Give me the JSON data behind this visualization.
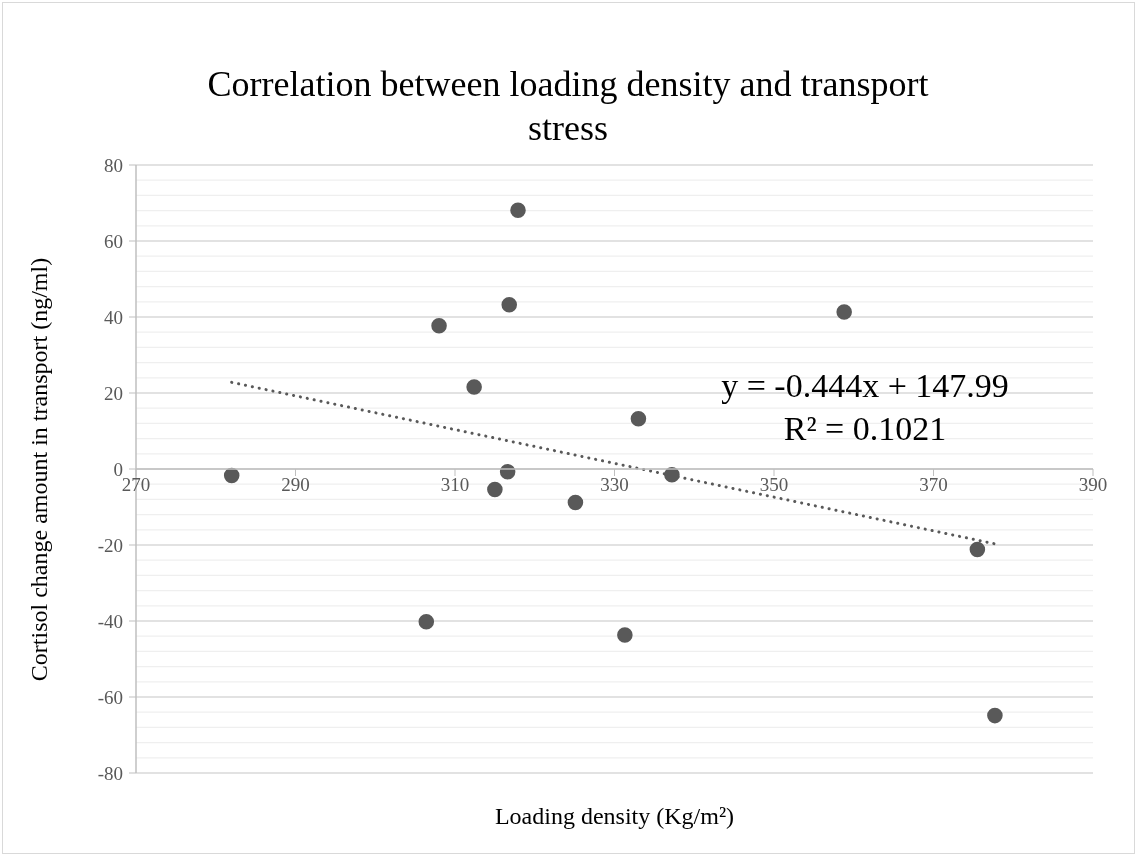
{
  "chart_data": {
    "type": "scatter",
    "title": "Correlation between loading density and transport stress",
    "xlabel": "Loading density (Kg/m²)",
    "ylabel": "Cortisol change amount in transport (ng/ml)",
    "annotations": [
      "y = -0.444x + 147.99",
      "R² = 0.1021"
    ],
    "series": [
      {
        "type": "scatter",
        "color": "#595959",
        "marker": "circle",
        "x": [
          282.0,
          306.4,
          308.0,
          312.4,
          315.0,
          316.6,
          316.8,
          317.9,
          325.1,
          331.3,
          333.0,
          337.2,
          358.8,
          375.5,
          377.7
        ],
        "values": [
          -1.7,
          -40.2,
          37.7,
          21.6,
          -5.4,
          -0.7,
          43.2,
          68.1,
          -8.8,
          -43.7,
          13.2,
          -1.5,
          41.3,
          -21.2,
          -64.9
        ]
      },
      {
        "type": "line",
        "color": "#595959",
        "line_style": "dotted",
        "x": [
          282.0,
          377.7
        ],
        "values": [
          22.8,
          -19.7
        ]
      }
    ],
    "xlim": [
      270,
      390
    ],
    "xticks": [
      270,
      290,
      310,
      330,
      350,
      370,
      390
    ],
    "ylim": [
      -80,
      80
    ],
    "yticks": [
      -80,
      {
        "value": -76,
        "label": null
      },
      {
        "value": -72,
        "label": null
      },
      {
        "value": -68,
        "label": null
      },
      {
        "value": -64,
        "label": null
      },
      -60,
      {
        "value": -56,
        "label": null
      },
      {
        "value": -52,
        "label": null
      },
      {
        "value": -48,
        "label": null
      },
      {
        "value": -44,
        "label": null
      },
      -40,
      {
        "value": -36,
        "label": null
      },
      {
        "value": -32,
        "label": null
      },
      {
        "value": -28,
        "label": null
      },
      {
        "value": -24,
        "label": null
      },
      -20,
      {
        "value": -16,
        "label": null
      },
      {
        "value": -12,
        "label": null
      },
      {
        "value": -8,
        "label": null
      },
      {
        "value": -4,
        "label": null
      },
      0,
      {
        "value": 4,
        "label": null
      },
      {
        "value": 8,
        "label": null
      },
      {
        "value": 12,
        "label": null
      },
      {
        "value": 16,
        "label": null
      },
      20,
      {
        "value": 24,
        "label": null
      },
      {
        "value": 28,
        "label": null
      },
      {
        "value": 32,
        "label": null
      },
      {
        "value": 36,
        "label": null
      },
      40,
      {
        "value": 44,
        "label": null
      },
      {
        "value": 48,
        "label": null
      },
      {
        "value": 52,
        "label": null
      },
      {
        "value": 56,
        "label": null
      },
      60,
      {
        "value": 64,
        "label": null
      },
      {
        "value": 68,
        "label": null
      },
      {
        "value": 72,
        "label": null
      },
      {
        "value": 76,
        "label": null
      },
      80
    ],
    "grid": "y"
  }
}
